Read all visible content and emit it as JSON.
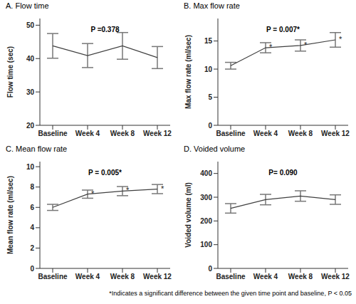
{
  "chart_data": [
    {
      "type": "line",
      "title": "A.  Flow time",
      "y_label": "Flow time (sec)",
      "annotation": "P =0.378",
      "color": "#404040",
      "categories": [
        "Baseline",
        "Week 4",
        "Week 8",
        "Week 12"
      ],
      "values": [
        43.8,
        40.9,
        43.8,
        40.3
      ],
      "error": [
        3.7,
        3.6,
        4.0,
        3.3
      ],
      "ylim": [
        20,
        52
      ],
      "yticks": [
        20,
        30,
        40,
        50
      ]
    },
    {
      "type": "line",
      "title": "B.  Max flow rate",
      "y_label": "Max flow rate (ml/sec)",
      "annotation": "P = 0.007*",
      "color": "#404040",
      "categories": [
        "Baseline",
        "Week 4",
        "Week 8",
        "Week 12"
      ],
      "values": [
        10.6,
        13.8,
        14.2,
        15.2
      ],
      "error": [
        0.6,
        0.9,
        1.0,
        1.3
      ],
      "significant": [
        false,
        true,
        true,
        true
      ],
      "significance_mark": "*",
      "ylim": [
        0,
        19
      ],
      "yticks": [
        0,
        5,
        10,
        15
      ]
    },
    {
      "type": "line",
      "title": "C.  Mean flow rate",
      "y_label": "Mean flow rate (ml/sec)",
      "annotation": "P = 0.005*",
      "color": "#404040",
      "categories": [
        "Baseline",
        "Week 4",
        "Week 8",
        "Week 12"
      ],
      "values": [
        6.0,
        7.3,
        7.6,
        7.8
      ],
      "error": [
        0.3,
        0.4,
        0.45,
        0.45
      ],
      "significant": [
        false,
        true,
        true,
        true
      ],
      "significance_mark": "*",
      "ylim": [
        0,
        10.5
      ],
      "yticks": [
        0,
        2,
        4,
        6,
        8,
        10
      ]
    },
    {
      "type": "line",
      "title": "D.  Voided volume",
      "y_label": "Voided volume (ml)",
      "annotation": "P= 0.090",
      "color": "#404040",
      "categories": [
        "Baseline",
        "Week 4",
        "Week 8",
        "Week 12"
      ],
      "values": [
        253,
        290,
        305,
        290
      ],
      "error": [
        20,
        22,
        22,
        20
      ],
      "ylim": [
        0,
        450
      ],
      "yticks": [
        0,
        100,
        200,
        300,
        400
      ]
    }
  ],
  "footnote": "*Indicates a significant difference between the given time point and baseline, P < 0.05"
}
